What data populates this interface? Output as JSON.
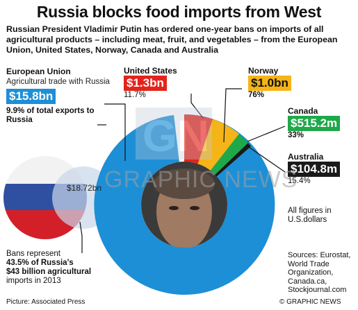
{
  "title": "Russia blocks food imports from West",
  "subtitle": "Russian President Vladimir Putin has ordered one-year bans on imports of all agricultural products – including meat, fruit, and vegetables – from the European Union, United States, Norway, Canada and Australia",
  "countries": [
    {
      "name": "European Union",
      "value": "$15.8bn",
      "pct": "9.9% of total exports to Russia",
      "sub": "Agricultural trade with Russia",
      "color": "#1d8fd6"
    },
    {
      "name": "United States",
      "value": "$1.3bn",
      "pct": "11.7%",
      "color": "#e3241b"
    },
    {
      "name": "Norway",
      "value": "$1.0bn",
      "pct": "76%",
      "color": "#f5b417"
    },
    {
      "name": "Canada",
      "value": "$515.2m",
      "pct": "33%",
      "color": "#1fa84a"
    },
    {
      "name": "Australia",
      "value": "$104.8m",
      "pct": "15.4%",
      "color": "#1a1a1a"
    }
  ],
  "flag_value": "$18.72bn",
  "all_figures": "All figures in U.S.dollars",
  "bans": {
    "line1": "Bans represent",
    "line2": "43.5% of Russia's",
    "line3": "$43 billion agricultural",
    "line4": "imports in 2013"
  },
  "sources": "Sources: Eurostat, World Trade Organization, Canada.ca, Stockjournal.com",
  "picture_credit": "Picture: Associated Press",
  "copyright": "© GRAPHIC NEWS",
  "watermark": "GRAPHIC NEWS",
  "colors": {
    "eu": "#1d8fd6",
    "us": "#e3241b",
    "norway": "#f5b417",
    "canada": "#1fa84a",
    "australia": "#1a1a1a"
  }
}
